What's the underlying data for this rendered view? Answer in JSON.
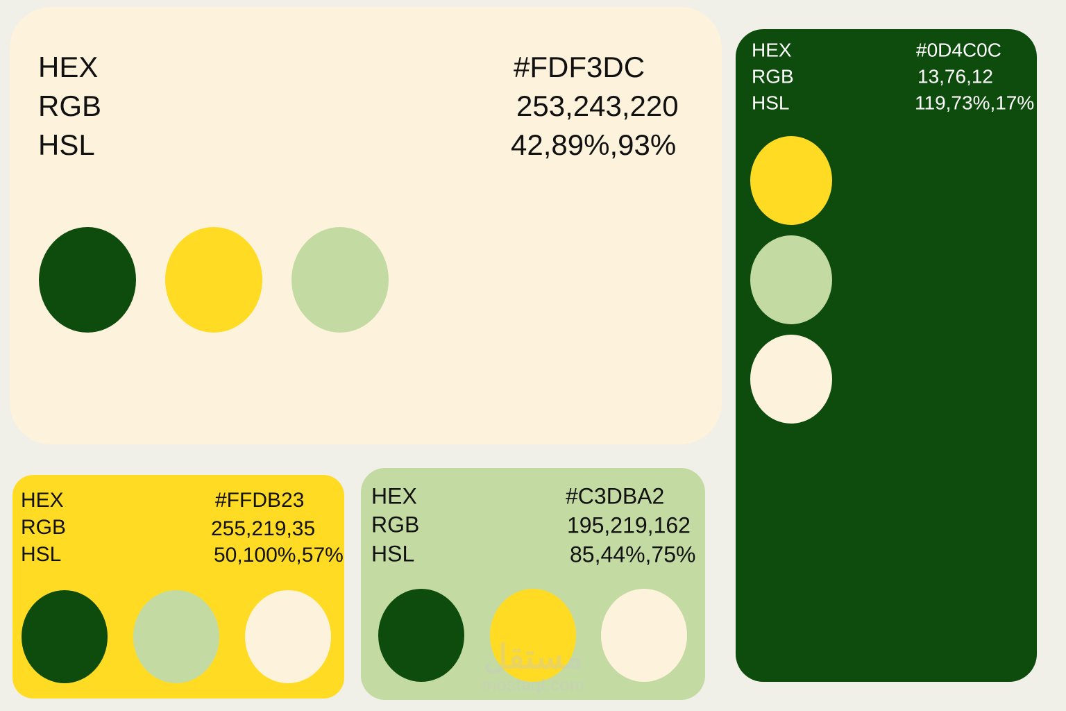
{
  "cards": [
    {
      "rows": [
        {
          "label": "HEX",
          "value": "#FDF3DC"
        },
        {
          "label": "RGB",
          "value": "253,243,220"
        },
        {
          "label": "HSL",
          "value": "42,89%,93%"
        }
      ]
    },
    {
      "rows": [
        {
          "label": "HEX",
          "value": "#0D4C0C"
        },
        {
          "label": "RGB",
          "value": "13,76,12"
        },
        {
          "label": "HSL",
          "value": "119,73%,17%"
        }
      ]
    },
    {
      "rows": [
        {
          "label": "HEX",
          "value": "#FFDB23"
        },
        {
          "label": "RGB",
          "value": "255,219,35"
        },
        {
          "label": "HSL",
          "value": "50,100%,57%"
        }
      ]
    },
    {
      "rows": [
        {
          "label": "HEX",
          "value": "#C3DBA2"
        },
        {
          "label": "RGB",
          "value": "195,219,162"
        },
        {
          "label": "HSL",
          "value": "85,44%,75%"
        }
      ]
    }
  ],
  "watermark": {
    "logo": "مستقل",
    "url": "mostaql.com"
  }
}
